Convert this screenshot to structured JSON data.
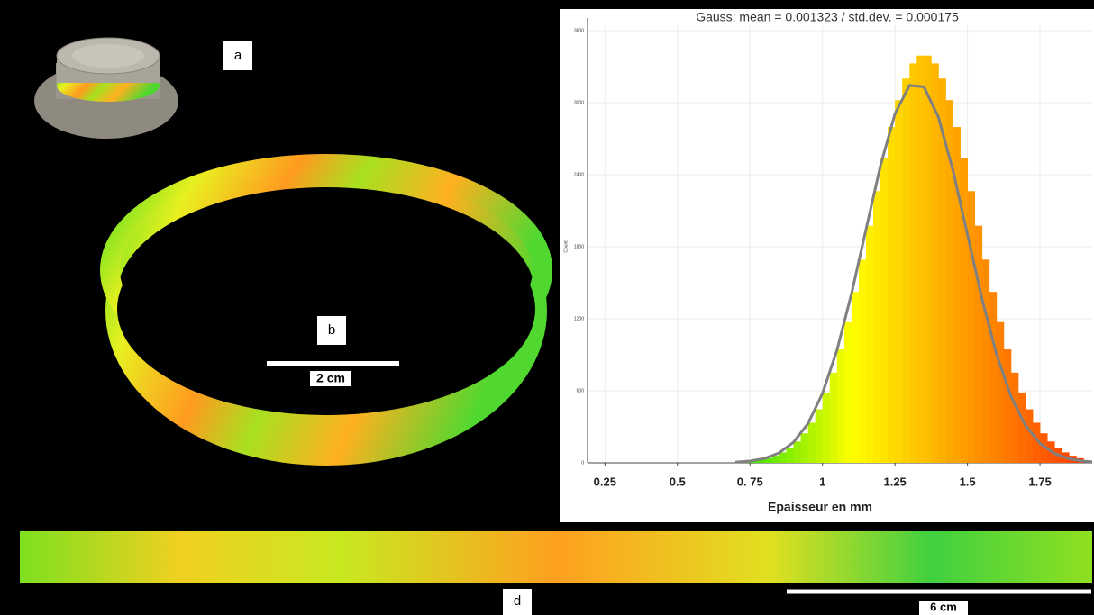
{
  "chart_data": {
    "type": "histogram",
    "title": "Gauss: mean = 0.001323 / std.dev. = 0.000175",
    "x_label": "Epaisseur en mm",
    "y_label": "Count",
    "bins": [
      0.7,
      0.725,
      0.75,
      0.775,
      0.8,
      0.825,
      0.85,
      0.875,
      0.9,
      0.925,
      0.95,
      0.975,
      1.0,
      1.025,
      1.05,
      1.075,
      1.1,
      1.125,
      1.15,
      1.175,
      1.2,
      1.225,
      1.25,
      1.275,
      1.3,
      1.325,
      1.35,
      1.375,
      1.4,
      1.425,
      1.45,
      1.475,
      1.5,
      1.525,
      1.55,
      1.575,
      1.6,
      1.625,
      1.65,
      1.675,
      1.7,
      1.725,
      1.75,
      1.775,
      1.8,
      1.825,
      1.85,
      1.875,
      1.9
    ],
    "values": [
      6,
      11,
      16,
      26,
      39,
      59,
      87,
      125,
      178,
      246,
      334,
      446,
      586,
      751,
      945,
      1172,
      1424,
      1693,
      1975,
      2263,
      2541,
      2797,
      3021,
      3201,
      3327,
      3392,
      3392,
      3327,
      3201,
      3021,
      2797,
      2541,
      2263,
      1975,
      1693,
      1424,
      1172,
      945,
      751,
      586,
      446,
      334,
      246,
      178,
      125,
      87,
      59,
      39
    ],
    "colormap": [
      "#20e000",
      "#ffff00",
      "#ff9a00",
      "#ff3a00"
    ],
    "curve": {
      "color": "#808080",
      "x": [
        0.7,
        0.75,
        0.8,
        0.85,
        0.9,
        0.95,
        1.0,
        1.05,
        1.1,
        1.15,
        1.2,
        1.25,
        1.3,
        1.35,
        1.4,
        1.45,
        1.5,
        1.55,
        1.6,
        1.65,
        1.7,
        1.75,
        1.8,
        1.85,
        1.9,
        1.95
      ],
      "values": [
        6,
        15,
        36,
        82,
        171,
        327,
        578,
        939,
        1408,
        1944,
        2476,
        2906,
        3143,
        3132,
        2878,
        2436,
        1902,
        1367,
        905,
        553,
        311,
        162,
        77,
        34,
        14,
        5
      ]
    },
    "xlim": [
      0.19,
      1.93
    ],
    "ylim": [
      0,
      3645
    ],
    "xticks": [
      0.25,
      0.5,
      {
        "value": 0.75,
        "label": "0. 75"
      },
      1,
      1.25,
      1.5,
      1.75
    ],
    "yticks": [
      0,
      600,
      1200,
      1800,
      2400,
      3000,
      3600
    ],
    "grid": true
  },
  "panel_labels": [
    "a",
    "b",
    "d"
  ],
  "scale_bars": [
    "2 cm",
    "6 cm"
  ]
}
